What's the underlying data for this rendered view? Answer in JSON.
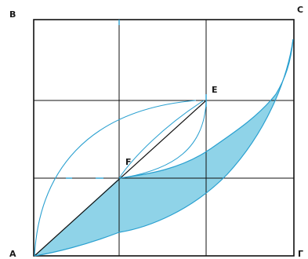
{
  "labels": {
    "A": "A",
    "B": "B",
    "C": "C",
    "D": "Г",
    "E": "E",
    "F": "F"
  },
  "colors": {
    "frame": "#111111",
    "grid": "#111111",
    "curve": "#2aa0d0",
    "fill": "#8fd3e8",
    "diagonal": "#111111"
  }
}
